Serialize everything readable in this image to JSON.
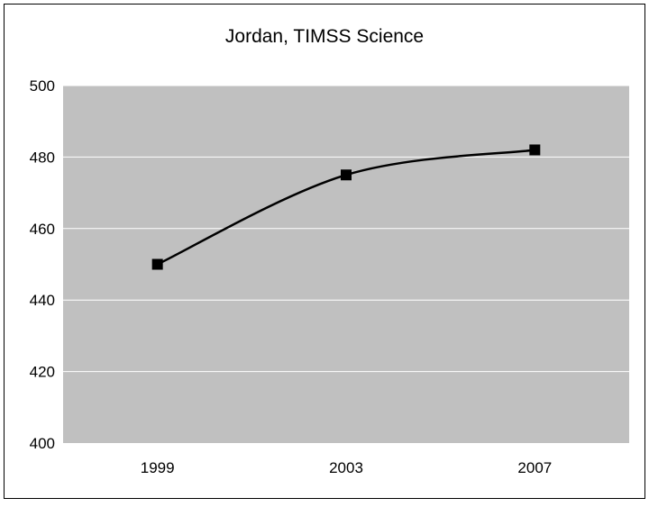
{
  "chart_data": {
    "type": "line",
    "title": "Jordan, TIMSS Science",
    "xlabel": "",
    "ylabel": "",
    "categories": [
      "1999",
      "2003",
      "2007"
    ],
    "series": [
      {
        "values": [
          450,
          475,
          482
        ]
      }
    ],
    "ylim": [
      400,
      500
    ],
    "yticks": [
      "400",
      "420",
      "440",
      "460",
      "480",
      "500"
    ],
    "grid": true,
    "legend": "none",
    "colors": {
      "plot_background": "#c0c0c0",
      "gridline": "#ffffff",
      "line": "#000000",
      "marker": "#000000",
      "frame": "#000000"
    }
  }
}
